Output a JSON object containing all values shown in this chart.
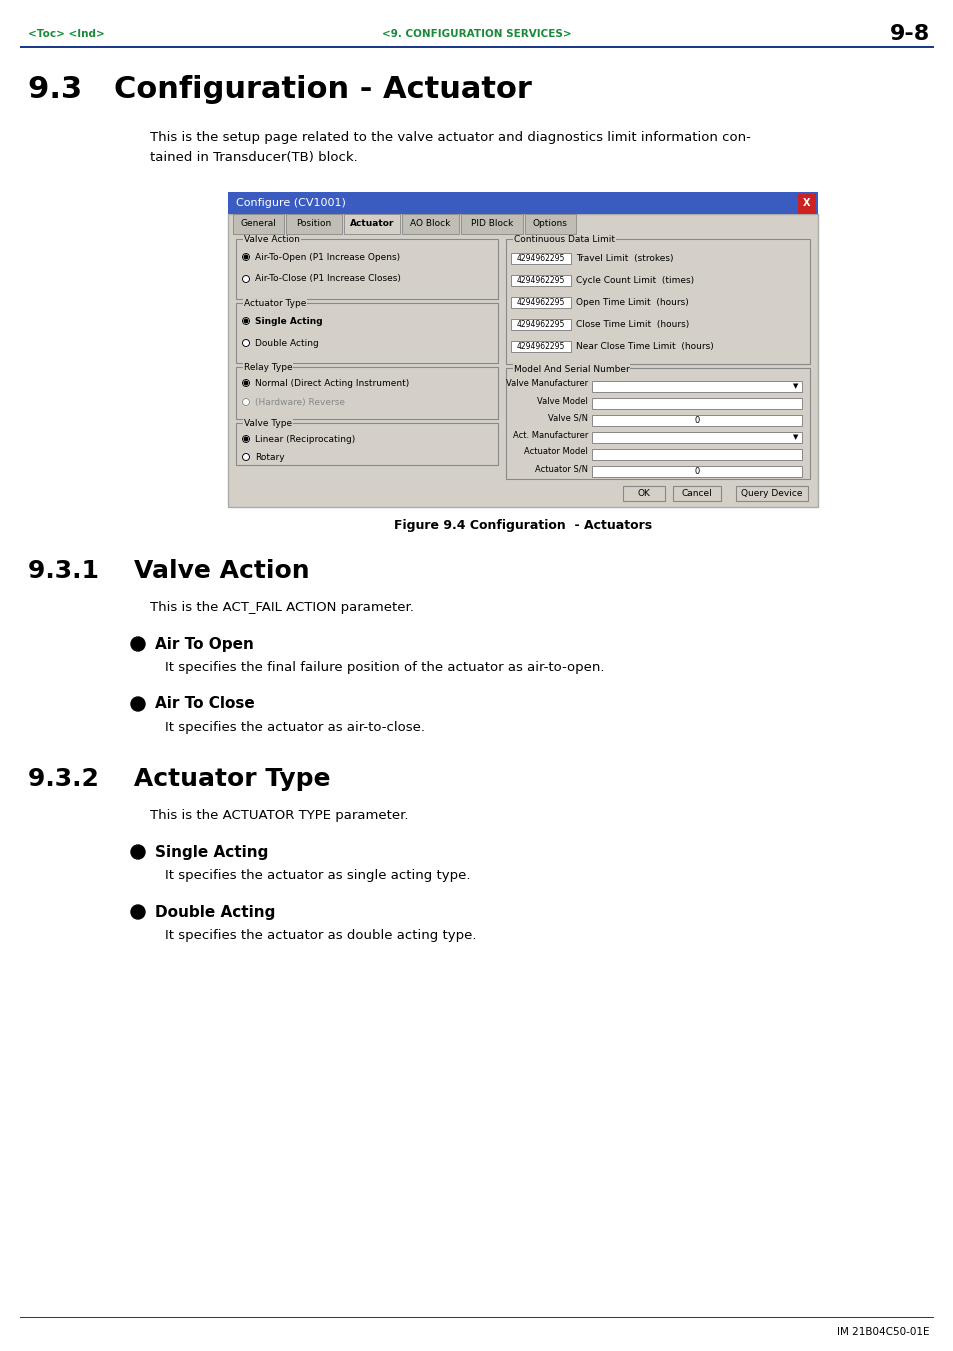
{
  "page_bg": "#ffffff",
  "header_line_color": "#1a3a8c",
  "header_text_color": "#1a8a3a",
  "header_left": "<Toc> <Ind>",
  "header_center": "<9. CONFIGURATION SERVICES>",
  "header_right": "9-8",
  "section_title": "9.3   Configuration - Actuator",
  "body_text_line1": "This is the setup page related to the valve actuator and diagnostics limit information con-",
  "body_text_line2": "tained in Transducer(TB) block.",
  "figure_caption": "Figure 9.4 Configuration  - Actuators",
  "subsection1_num": "9.3.1",
  "subsection1_title": "Valve Action",
  "subsection1_body": "This is the ACT_FAIL ACTION parameter.",
  "bullet1_title": "Air To Open",
  "bullet1_body": "It specifies the final failure position of the actuator as air-to-open.",
  "bullet2_title": "Air To Close",
  "bullet2_body": "It specifies the actuator as air-to-close.",
  "subsection2_num": "9.3.2",
  "subsection2_title": "Actuator Type",
  "subsection2_body": "This is the ACTUATOR TYPE parameter.",
  "bullet3_title": "Single Acting",
  "bullet3_body": "It specifies the actuator as single acting type.",
  "bullet4_title": "Double Acting",
  "bullet4_body": "It specifies the actuator as double acting type.",
  "footer_text": "IM 21B04C50-01E",
  "footer_line_color": "#1a3a8c",
  "dialog_title": "Configure (CV1001)",
  "dialog_title_bg": "#3a5bbf",
  "dialog_title_fg": "#ffffff",
  "dialog_bg": "#d4d0c8",
  "dialog_tab_active": "Actuator",
  "dialog_tabs": [
    "General",
    "Position",
    "Actuator",
    "AO Block",
    "PID Block",
    "Options"
  ],
  "valve_action_label": "Valve Action",
  "valve_radio1": "Air-To-Open (P1 Increase Opens)",
  "valve_radio2": "Air-To-Close (P1 Increase Closes)",
  "actuator_type_label": "Actuator Type",
  "actuator_radio1": "Single Acting",
  "actuator_radio2": "Double Acting",
  "relay_type_label": "Relay Type",
  "relay_radio1": "Normal (Direct Acting Instrument)",
  "relay_radio2": "(Hardware) Reverse",
  "valve_type_label": "Valve Type",
  "valve_type_radio1": "Linear (Reciprocating)",
  "valve_type_radio2": "Rotary",
  "continuous_label": "Continuous Data Limit",
  "cont_fields": [
    "4294962295",
    "4294962295",
    "4294962295",
    "4294962295",
    "4294962295"
  ],
  "cont_labels": [
    "Travel Limit  (strokes)",
    "Cycle Count Limit  (times)",
    "Open Time Limit  (hours)",
    "Close Time Limit  (hours)",
    "Near Close Time Limit  (hours)"
  ],
  "model_label": "Model And Serial Number",
  "ok_btn": "OK",
  "cancel_btn": "Cancel",
  "query_btn": "Query Device"
}
